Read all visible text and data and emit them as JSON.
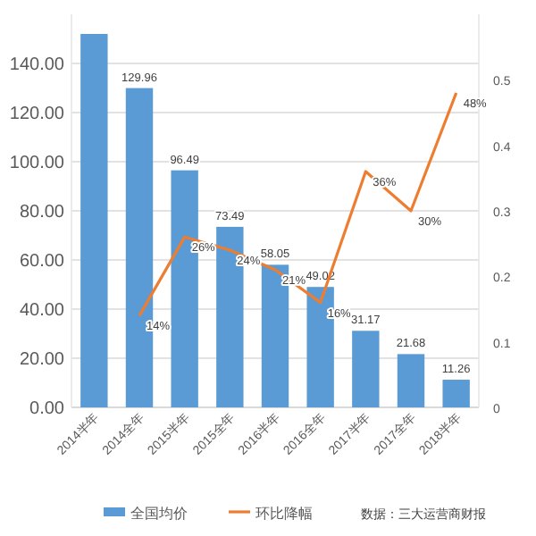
{
  "chart_data": {
    "type": "bar",
    "categories": [
      "2014半年",
      "2014全年",
      "2015半年",
      "2015全年",
      "2016半年",
      "2016全年",
      "2017半年",
      "2017全年",
      "2018半年"
    ],
    "series": [
      {
        "name": "全国均价",
        "color": "#5b9bd5",
        "values": [
          152,
          129.96,
          96.49,
          73.49,
          58.05,
          49.02,
          31.17,
          21.68,
          11.26
        ],
        "value_labels": [
          null,
          "129.96",
          "96.49",
          "73.49",
          "58.05",
          "49.02",
          "31.17",
          "21.68",
          "11.26"
        ]
      },
      {
        "name": "环比降幅",
        "type": "line",
        "axis": "y2",
        "color": "#ed7d31",
        "values": [
          null,
          0.14,
          0.26,
          0.24,
          0.21,
          0.16,
          0.36,
          0.3,
          0.48
        ],
        "value_labels": [
          null,
          "14%",
          "26%",
          "24%",
          "21%",
          "16%",
          "36%",
          "30%",
          "48%"
        ]
      }
    ],
    "ylim": [
      0,
      160
    ],
    "yticks": [
      {
        "value": 0,
        "label": "0.00"
      },
      {
        "value": 20,
        "label": "20.00"
      },
      {
        "value": 40,
        "label": "40.00"
      },
      {
        "value": 60,
        "label": "60.00"
      },
      {
        "value": 80,
        "label": "80.00"
      },
      {
        "value": 100,
        "label": "100.00"
      },
      {
        "value": 120,
        "label": "120.00"
      },
      {
        "value": 140,
        "label": "140.00"
      }
    ],
    "y2lim": [
      0,
      0.6
    ],
    "y2ticks": [
      0,
      0.1,
      0.2,
      0.3,
      0.4,
      0.5
    ],
    "grid": "y",
    "legend": "bottom",
    "annotations": [
      "数据：三大运营商财报"
    ]
  }
}
